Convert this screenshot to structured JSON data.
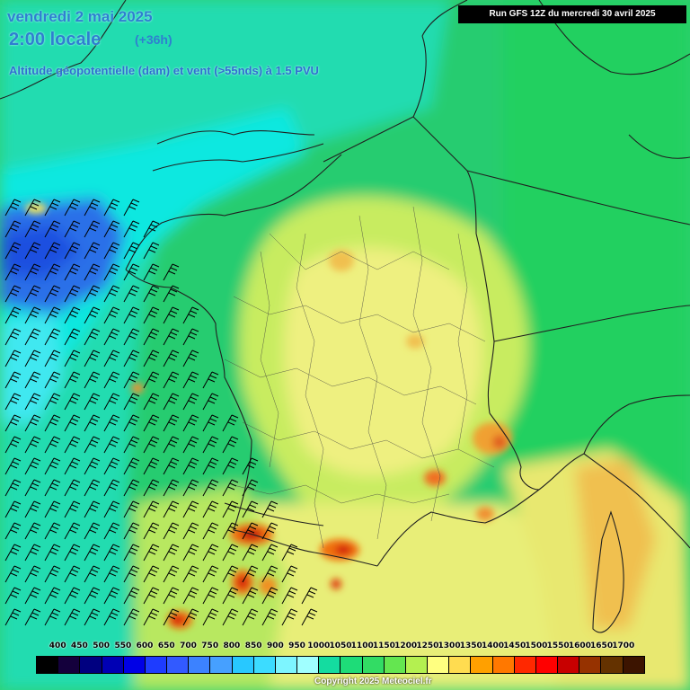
{
  "title": {
    "date": "vendredi 2 mai 2025",
    "time": "2:00 locale",
    "lead": "(+36h)",
    "subtitle": "Altitude géopotentielle (dam) et vent (>55nds) à 1.5 PVU"
  },
  "run_info": "Run GFS 12Z du mercredi 30 avril 2025",
  "scale": {
    "labels": [
      "400",
      "450",
      "500",
      "550",
      "600",
      "650",
      "700",
      "750",
      "800",
      "850",
      "900",
      "950",
      "1000",
      "1050",
      "1100",
      "1150",
      "1200",
      "1250",
      "1300",
      "1350",
      "1400",
      "1450",
      "1500",
      "1550",
      "1600",
      "1650",
      "1700"
    ],
    "colors": [
      "#000000",
      "#14003c",
      "#000080",
      "#0000b4",
      "#0000e6",
      "#1e3cff",
      "#325aff",
      "#3c82ff",
      "#46a0ff",
      "#28c8ff",
      "#3cdcff",
      "#7df5ff",
      "#a0ffff",
      "#14dca0",
      "#1edc78",
      "#32dc64",
      "#64e650",
      "#b4f050",
      "#ffff80",
      "#ffdc50",
      "#ffa000",
      "#ff7800",
      "#ff2800",
      "#ff0000",
      "#c80000",
      "#963200",
      "#643200",
      "#3c1400"
    ]
  },
  "copyright": "Copyright 2025 Meteociel.fr",
  "map_colors": {
    "land_green": "#30d070",
    "sea_cyan": "#20e0c0",
    "low_blue": "#2060e8",
    "yellow": "#f0f080",
    "orange": "#f0a030",
    "red": "#e02010"
  }
}
